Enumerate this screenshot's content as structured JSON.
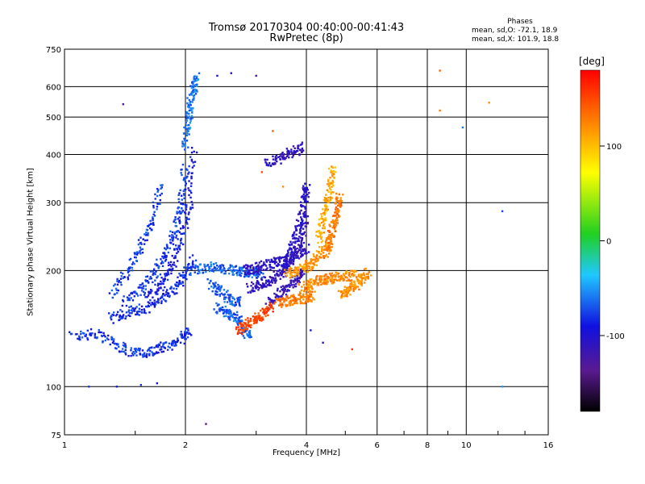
{
  "title_line1": "Tromsø 20170304 00:40:00-00:41:43",
  "title_line2": "RwPretec (8p)",
  "phases": {
    "heading": "Phases",
    "o_mode": "mean, sd,O: -72.1, 18.9",
    "x_mode": "mean, sd,X: 101.9, 18.8"
  },
  "colorbar": {
    "unit": "[deg]",
    "ticks": [
      "100",
      "0",
      "-100"
    ],
    "tick_values": [
      100,
      0,
      -100
    ],
    "range": [
      -180,
      180
    ]
  },
  "chart_data": {
    "type": "scatter",
    "xlabel": "Frequency [MHz]",
    "ylabel": "Stationary phase Virtual Height [km]",
    "xscale": "log",
    "yscale": "log",
    "xlim": [
      1,
      16
    ],
    "ylim": [
      75,
      750
    ],
    "xticks": [
      1,
      2,
      4,
      6,
      8,
      10,
      16
    ],
    "xtick_labels": [
      "1",
      "2",
      "4",
      "6",
      "8",
      "10",
      "16"
    ],
    "yticks": [
      75,
      100,
      200,
      300,
      400,
      500,
      600,
      750
    ],
    "ytick_labels": [
      "75",
      "100",
      "200",
      "300",
      "400",
      "500",
      "600",
      "750"
    ],
    "grid": true,
    "traces": [
      {
        "f": [
          1.05,
          1.2,
          1.35,
          1.5,
          1.65,
          1.8,
          1.95,
          2.05
        ],
        "h": [
          135,
          137,
          128,
          122,
          124,
          127,
          133,
          140
        ],
        "phase": -80
      },
      {
        "f": [
          1.3,
          1.45,
          1.6,
          1.75,
          1.9,
          2.0,
          2.1
        ],
        "h": [
          150,
          156,
          160,
          170,
          182,
          195,
          215
        ],
        "phase": -82
      },
      {
        "f": [
          1.4,
          1.55,
          1.7,
          1.8,
          1.9,
          1.95,
          2.0
        ],
        "h": [
          165,
          180,
          200,
          225,
          260,
          300,
          380
        ],
        "phase": -78
      },
      {
        "f": [
          1.3,
          1.45,
          1.55,
          1.65,
          1.75
        ],
        "h": [
          175,
          200,
          230,
          270,
          340
        ],
        "phase": -76
      },
      {
        "f": [
          1.6,
          1.75,
          1.85,
          1.95,
          2.05,
          2.1
        ],
        "h": [
          170,
          185,
          205,
          240,
          300,
          420
        ],
        "phase": -90
      },
      {
        "f": [
          2.0,
          2.03,
          2.06,
          2.1,
          2.13
        ],
        "h": [
          420,
          480,
          540,
          600,
          640
        ],
        "phase": -62
      },
      {
        "f": [
          2.1,
          2.3,
          2.5,
          2.7,
          2.9,
          3.1
        ],
        "h": [
          200,
          205,
          202,
          200,
          198,
          196
        ],
        "phase": -66
      },
      {
        "f": [
          2.3,
          2.45,
          2.6,
          2.75
        ],
        "h": [
          185,
          175,
          168,
          165
        ],
        "phase": -70
      },
      {
        "f": [
          2.4,
          2.55,
          2.7,
          2.8,
          2.9
        ],
        "h": [
          160,
          155,
          150,
          140,
          135
        ],
        "phase": -68
      },
      {
        "f": [
          2.8,
          3.0,
          3.2,
          3.4,
          3.6,
          3.8,
          4.0
        ],
        "h": [
          200,
          203,
          207,
          210,
          214,
          220,
          228
        ],
        "phase": -108
      },
      {
        "f": [
          2.9,
          3.1,
          3.3,
          3.5,
          3.7,
          3.9,
          4.0
        ],
        "h": [
          180,
          185,
          190,
          198,
          212,
          240,
          280
        ],
        "phase": -112
      },
      {
        "f": [
          3.2,
          3.4,
          3.6,
          3.8,
          3.95
        ],
        "h": [
          162,
          172,
          180,
          190,
          198
        ],
        "phase": -115
      },
      {
        "f": [
          3.5,
          3.65,
          3.8,
          3.9,
          3.98,
          4.0
        ],
        "h": [
          200,
          225,
          250,
          280,
          310,
          330
        ],
        "phase": -105
      },
      {
        "f": [
          3.2,
          3.45,
          3.7,
          3.95
        ],
        "h": [
          380,
          390,
          405,
          420
        ],
        "phase": -110
      },
      {
        "f": [
          2.7,
          2.85,
          3.0,
          3.15,
          3.3
        ],
        "h": [
          140,
          145,
          150,
          155,
          162
        ],
        "phase": 152
      },
      {
        "f": [
          3.4,
          3.6,
          3.8,
          4.0,
          4.15
        ],
        "h": [
          165,
          167,
          168,
          170,
          172
        ],
        "phase": 128
      },
      {
        "f": [
          3.6,
          3.8,
          4.0,
          4.2,
          4.4,
          4.6
        ],
        "h": [
          195,
          200,
          205,
          212,
          225,
          240
        ],
        "phase": 118
      },
      {
        "f": [
          3.9,
          4.1,
          4.3,
          4.5,
          4.7,
          5.0,
          5.3
        ],
        "h": [
          180,
          185,
          188,
          190,
          192,
          193,
          195
        ],
        "phase": 122
      },
      {
        "f": [
          4.5,
          4.6,
          4.7,
          4.8,
          4.85
        ],
        "h": [
          220,
          245,
          270,
          290,
          310
        ],
        "phase": 130
      },
      {
        "f": [
          4.9,
          5.1,
          5.3,
          5.5,
          5.7
        ],
        "h": [
          172,
          178,
          182,
          190,
          198
        ],
        "phase": 120
      },
      {
        "f": [
          4.3,
          4.4,
          4.5,
          4.6,
          4.65
        ],
        "h": [
          240,
          270,
          300,
          330,
          370
        ],
        "phase": 108
      }
    ],
    "points": [
      {
        "f": 1.15,
        "h": 100,
        "phase": -78
      },
      {
        "f": 1.35,
        "h": 100,
        "phase": -88
      },
      {
        "f": 1.55,
        "h": 101,
        "phase": -80
      },
      {
        "f": 1.7,
        "h": 102,
        "phase": -95
      },
      {
        "f": 1.4,
        "h": 540,
        "phase": -130
      },
      {
        "f": 2.25,
        "h": 80,
        "phase": -140
      },
      {
        "f": 2.4,
        "h": 640,
        "phase": -90
      },
      {
        "f": 2.6,
        "h": 650,
        "phase": -100
      },
      {
        "f": 3.0,
        "h": 640,
        "phase": -120
      },
      {
        "f": 8.6,
        "h": 660,
        "phase": 140
      },
      {
        "f": 8.6,
        "h": 520,
        "phase": 130
      },
      {
        "f": 11.4,
        "h": 545,
        "phase": 120
      },
      {
        "f": 9.8,
        "h": 470,
        "phase": -60
      },
      {
        "f": 12.3,
        "h": 285,
        "phase": -75
      },
      {
        "f": 12.3,
        "h": 100,
        "phase": -50
      },
      {
        "f": 3.1,
        "h": 360,
        "phase": 150
      },
      {
        "f": 3.5,
        "h": 330,
        "phase": 120
      },
      {
        "f": 4.4,
        "h": 130,
        "phase": -110
      },
      {
        "f": 5.2,
        "h": 125,
        "phase": 160
      },
      {
        "f": 4.1,
        "h": 140,
        "phase": -90
      },
      {
        "f": 3.3,
        "h": 460,
        "phase": 140
      }
    ]
  },
  "colors": {
    "grid": "#000000",
    "axes": "#000000",
    "background": "#ffffff"
  }
}
